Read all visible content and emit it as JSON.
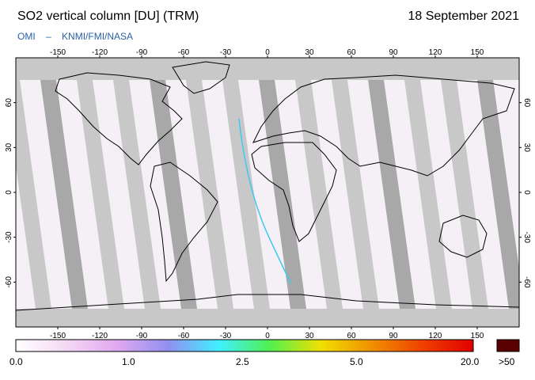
{
  "header": {
    "title": "SO2 vertical column [DU] (TRM)",
    "date": "18 September 2021",
    "credit_instrument": "OMI",
    "credit_separator": "–",
    "credit_agencies": "KNMI/FMI/NASA"
  },
  "map": {
    "projection": "equirectangular",
    "lon_ticks": [
      -150,
      -120,
      -90,
      -60,
      -30,
      0,
      30,
      60,
      90,
      120,
      150
    ],
    "lat_ticks": [
      60,
      30,
      0,
      -30,
      -60
    ],
    "colors": {
      "no_data_gray": "#c8c8c8",
      "dark_swath_gray": "#a8a8a8",
      "low_value": "#f4f0f6",
      "coast": "#000000"
    }
  },
  "colorbar": {
    "labels": [
      "0.0",
      "1.0",
      "2.5",
      "5.0",
      "20.0"
    ],
    "overflow_label": ">50",
    "overflow_color": "#5a0000",
    "stops": [
      "#ffffff",
      "#f4d8f4",
      "#e0a8f0",
      "#9090f0",
      "#40f0ff",
      "#50f050",
      "#f0e000",
      "#f09000",
      "#f04000",
      "#e00000"
    ]
  }
}
